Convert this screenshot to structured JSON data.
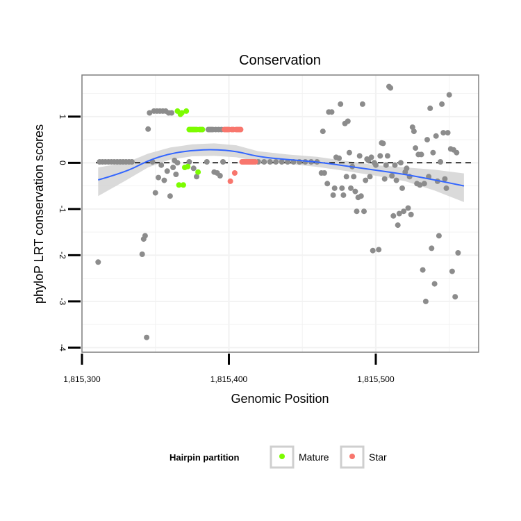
{
  "chart_data": {
    "type": "scatter",
    "title": "Conservation",
    "xlabel": "Genomic Position",
    "ylabel": "phyloP LRT conservation scores",
    "xlim": [
      1815300,
      1815570
    ],
    "ylim": [
      -4.1,
      1.9
    ],
    "x_ticks": [
      1815300,
      1815400,
      1815500
    ],
    "x_tick_labels": [
      "1,815,300",
      "1,815,400",
      "1,815,500"
    ],
    "y_ticks": [
      -4,
      -3,
      -2,
      -1,
      0,
      1
    ],
    "y_tick_labels": [
      "-4",
      "-3",
      "-2",
      "-1",
      "0",
      "1"
    ],
    "reference_line": {
      "y": 0,
      "style": "dashed"
    },
    "legend": {
      "title": "Hairpin partition",
      "position": "bottom",
      "entries": [
        {
          "label": "Mature",
          "color": "#7CFC00"
        },
        {
          "label": "Star",
          "color": "#F8766D"
        }
      ]
    },
    "colors": {
      "other": "#8C8C8C",
      "mature": "#7CFC00",
      "star": "#F8766D",
      "smooth_line": "#3366FF",
      "smooth_band": "#D3D3D3",
      "panel_border": "#7F7F7F",
      "grid": "#F2F2F2"
    },
    "series": [
      {
        "name": "Other",
        "points": [
          [
            1815311,
            -2.15
          ],
          [
            1815312,
            0.02
          ],
          [
            1815314,
            0.02
          ],
          [
            1815316,
            0.02
          ],
          [
            1815318,
            0.02
          ],
          [
            1815320,
            0.02
          ],
          [
            1815322,
            0.02
          ],
          [
            1815324,
            0.02
          ],
          [
            1815326,
            0.02
          ],
          [
            1815328,
            0.02
          ],
          [
            1815330,
            0.02
          ],
          [
            1815332,
            0.02
          ],
          [
            1815334,
            0.02
          ],
          [
            1815341,
            -1.98
          ],
          [
            1815342,
            -1.65
          ],
          [
            1815343,
            -1.58
          ],
          [
            1815344,
            -3.78
          ],
          [
            1815345,
            0.73
          ],
          [
            1815346,
            1.08
          ],
          [
            1815348,
            0.02
          ],
          [
            1815349,
            1.12
          ],
          [
            1815350,
            -0.65
          ],
          [
            1815351,
            1.12
          ],
          [
            1815352,
            -0.32
          ],
          [
            1815353,
            1.12
          ],
          [
            1815354,
            -0.05
          ],
          [
            1815355,
            1.12
          ],
          [
            1815356,
            -0.38
          ],
          [
            1815357,
            1.12
          ],
          [
            1815358,
            -0.18
          ],
          [
            1815359,
            1.08
          ],
          [
            1815360,
            -0.72
          ],
          [
            1815361,
            1.08
          ],
          [
            1815362,
            -0.1
          ],
          [
            1815363,
            0.05
          ],
          [
            1815364,
            -0.25
          ],
          [
            1815365,
            0.0
          ],
          [
            1815373,
            0.02
          ],
          [
            1815376,
            -0.12
          ],
          [
            1815378,
            -0.3
          ],
          [
            1815385,
            0.02
          ],
          [
            1815386,
            0.72
          ],
          [
            1815387,
            0.72
          ],
          [
            1815388,
            0.72
          ],
          [
            1815389,
            0.72
          ],
          [
            1815390,
            -0.2
          ],
          [
            1815391,
            0.72
          ],
          [
            1815392,
            -0.22
          ],
          [
            1815393,
            0.72
          ],
          [
            1815394,
            -0.28
          ],
          [
            1815395,
            0.72
          ],
          [
            1815396,
            0.02
          ],
          [
            1815420,
            0.02
          ],
          [
            1815424,
            0.02
          ],
          [
            1815428,
            0.02
          ],
          [
            1815432,
            0.02
          ],
          [
            1815436,
            0.02
          ],
          [
            1815440,
            0.02
          ],
          [
            1815444,
            0.02
          ],
          [
            1815448,
            0.02
          ],
          [
            1815452,
            0.02
          ],
          [
            1815456,
            0.02
          ],
          [
            1815460,
            0.02
          ],
          [
            1815463,
            -0.22
          ],
          [
            1815464,
            0.68
          ],
          [
            1815465,
            -0.22
          ],
          [
            1815467,
            -0.45
          ],
          [
            1815468,
            1.1
          ],
          [
            1815470,
            1.1
          ],
          [
            1815471,
            -0.7
          ],
          [
            1815472,
            -0.55
          ],
          [
            1815473,
            0.12
          ],
          [
            1815475,
            0.1
          ],
          [
            1815476,
            1.27
          ],
          [
            1815477,
            -0.55
          ],
          [
            1815478,
            -0.7
          ],
          [
            1815479,
            0.85
          ],
          [
            1815480,
            -0.3
          ],
          [
            1815481,
            0.9
          ],
          [
            1815482,
            0.22
          ],
          [
            1815483,
            -0.55
          ],
          [
            1815484,
            -0.08
          ],
          [
            1815485,
            -0.3
          ],
          [
            1815486,
            -0.62
          ],
          [
            1815487,
            -1.05
          ],
          [
            1815488,
            -0.75
          ],
          [
            1815489,
            0.15
          ],
          [
            1815490,
            -0.72
          ],
          [
            1815491,
            1.27
          ],
          [
            1815492,
            -1.05
          ],
          [
            1815493,
            -0.38
          ],
          [
            1815494,
            0.08
          ],
          [
            1815495,
            0.05
          ],
          [
            1815496,
            -0.3
          ],
          [
            1815497,
            0.12
          ],
          [
            1815498,
            -1.9
          ],
          [
            1815499,
            0.0
          ],
          [
            1815500,
            -0.05
          ],
          [
            1815502,
            -1.88
          ],
          [
            1815503,
            0.15
          ],
          [
            1815504,
            0.43
          ],
          [
            1815505,
            0.42
          ],
          [
            1815506,
            -0.35
          ],
          [
            1815507,
            -0.05
          ],
          [
            1815508,
            0.15
          ],
          [
            1815509,
            1.65
          ],
          [
            1815510,
            1.62
          ],
          [
            1815511,
            -0.28
          ],
          [
            1815512,
            -1.15
          ],
          [
            1815513,
            -0.05
          ],
          [
            1815514,
            -0.38
          ],
          [
            1815515,
            -1.35
          ],
          [
            1815516,
            -1.1
          ],
          [
            1815517,
            0.0
          ],
          [
            1815518,
            -0.55
          ],
          [
            1815519,
            -1.05
          ],
          [
            1815520,
            -0.2
          ],
          [
            1815521,
            -0.12
          ],
          [
            1815522,
            -0.98
          ],
          [
            1815523,
            -0.3
          ],
          [
            1815524,
            -1.12
          ],
          [
            1815525,
            0.77
          ],
          [
            1815526,
            0.68
          ],
          [
            1815527,
            0.32
          ],
          [
            1815528,
            -0.45
          ],
          [
            1815529,
            0.18
          ],
          [
            1815530,
            -0.48
          ],
          [
            1815531,
            0.18
          ],
          [
            1815532,
            -2.32
          ],
          [
            1815533,
            -0.45
          ],
          [
            1815534,
            -3.0
          ],
          [
            1815535,
            0.5
          ],
          [
            1815536,
            -0.3
          ],
          [
            1815537,
            1.18
          ],
          [
            1815538,
            -1.85
          ],
          [
            1815539,
            0.22
          ],
          [
            1815540,
            -2.62
          ],
          [
            1815541,
            0.58
          ],
          [
            1815542,
            -0.4
          ],
          [
            1815543,
            -1.58
          ],
          [
            1815544,
            0.02
          ],
          [
            1815545,
            1.27
          ],
          [
            1815546,
            0.65
          ],
          [
            1815547,
            -0.35
          ],
          [
            1815548,
            -0.55
          ],
          [
            1815549,
            0.65
          ],
          [
            1815550,
            1.47
          ],
          [
            1815551,
            0.3
          ],
          [
            1815552,
            -2.35
          ],
          [
            1815553,
            0.28
          ],
          [
            1815554,
            -2.9
          ],
          [
            1815555,
            0.22
          ],
          [
            1815556,
            -1.95
          ]
        ]
      },
      {
        "name": "Mature",
        "points": [
          [
            1815365,
            1.12
          ],
          [
            1815366,
            -0.48
          ],
          [
            1815367,
            1.05
          ],
          [
            1815368,
            1.08
          ],
          [
            1815369,
            -0.48
          ],
          [
            1815370,
            -0.1
          ],
          [
            1815371,
            1.12
          ],
          [
            1815372,
            -0.08
          ],
          [
            1815373,
            0.72
          ],
          [
            1815374,
            0.72
          ],
          [
            1815375,
            0.72
          ],
          [
            1815376,
            0.72
          ],
          [
            1815377,
            0.72
          ],
          [
            1815378,
            0.72
          ],
          [
            1815379,
            -0.2
          ],
          [
            1815380,
            0.72
          ],
          [
            1815381,
            0.72
          ],
          [
            1815382,
            0.72
          ]
        ]
      },
      {
        "name": "Star",
        "points": [
          [
            1815397,
            0.72
          ],
          [
            1815398,
            0.72
          ],
          [
            1815399,
            0.72
          ],
          [
            1815400,
            0.72
          ],
          [
            1815401,
            -0.4
          ],
          [
            1815402,
            0.72
          ],
          [
            1815403,
            0.72
          ],
          [
            1815404,
            -0.22
          ],
          [
            1815405,
            0.72
          ],
          [
            1815406,
            0.72
          ],
          [
            1815407,
            0.72
          ],
          [
            1815408,
            0.72
          ],
          [
            1815409,
            0.02
          ],
          [
            1815410,
            0.02
          ],
          [
            1815411,
            0.02
          ],
          [
            1815412,
            0.02
          ],
          [
            1815413,
            0.02
          ],
          [
            1815414,
            0.02
          ],
          [
            1815415,
            0.02
          ],
          [
            1815416,
            0.02
          ],
          [
            1815417,
            0.02
          ],
          [
            1815418,
            0.02
          ]
        ]
      }
    ],
    "smooth_fit": {
      "x": [
        1815311,
        1815330,
        1815345,
        1815360,
        1815375,
        1815390,
        1815405,
        1815420,
        1815440,
        1815460,
        1815480,
        1815500,
        1815520,
        1815540,
        1815560
      ],
      "y": [
        -0.37,
        -0.2,
        0.05,
        0.2,
        0.27,
        0.29,
        0.25,
        0.13,
        0.07,
        0.02,
        -0.07,
        -0.16,
        -0.25,
        -0.37,
        -0.5
      ],
      "upper": [
        -0.1,
        0.0,
        0.2,
        0.33,
        0.4,
        0.42,
        0.38,
        0.25,
        0.18,
        0.13,
        0.04,
        -0.05,
        -0.1,
        -0.15,
        -0.23
      ],
      "lower": [
        -0.72,
        -0.38,
        -0.1,
        0.07,
        0.14,
        0.15,
        0.12,
        0.03,
        -0.02,
        -0.09,
        -0.18,
        -0.28,
        -0.4,
        -0.6,
        -0.85
      ]
    }
  }
}
